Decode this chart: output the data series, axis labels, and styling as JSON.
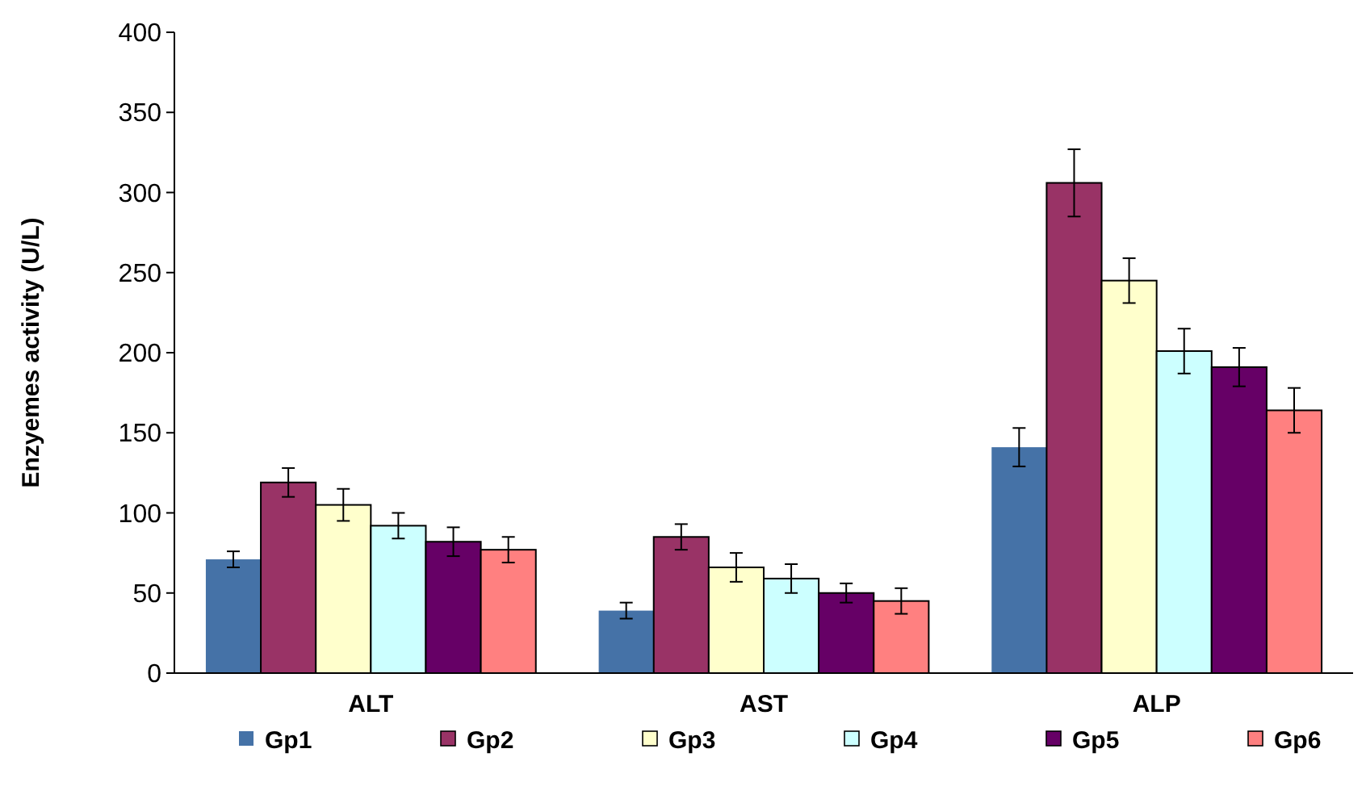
{
  "chart_data": {
    "type": "bar",
    "ylabel": "Enzyemes activity (U/L)",
    "categories": [
      "ALT",
      "AST",
      "ALP"
    ],
    "series": [
      {
        "name": "Gp1",
        "color": "#4572a7",
        "values": [
          71,
          39,
          141
        ],
        "errors": [
          5,
          5,
          12
        ]
      },
      {
        "name": "Gp2",
        "color": "#993366",
        "values": [
          119,
          85,
          306
        ],
        "errors": [
          9,
          8,
          21
        ]
      },
      {
        "name": "Gp3",
        "color": "#ffffcc",
        "values": [
          105,
          66,
          245
        ],
        "errors": [
          10,
          9,
          14
        ]
      },
      {
        "name": "Gp4",
        "color": "#ccffff",
        "values": [
          92,
          59,
          201
        ],
        "errors": [
          8,
          9,
          14
        ]
      },
      {
        "name": "Gp5",
        "color": "#660066",
        "values": [
          82,
          50,
          191
        ],
        "errors": [
          9,
          6,
          12
        ]
      },
      {
        "name": "Gp6",
        "color": "#ff8080",
        "values": [
          77,
          45,
          164
        ],
        "errors": [
          8,
          8,
          14
        ]
      }
    ],
    "ylim": [
      0,
      400
    ],
    "yticks": [
      0,
      50,
      100,
      150,
      200,
      250,
      300,
      350,
      400
    ],
    "grid": false,
    "legend": "bottom"
  }
}
